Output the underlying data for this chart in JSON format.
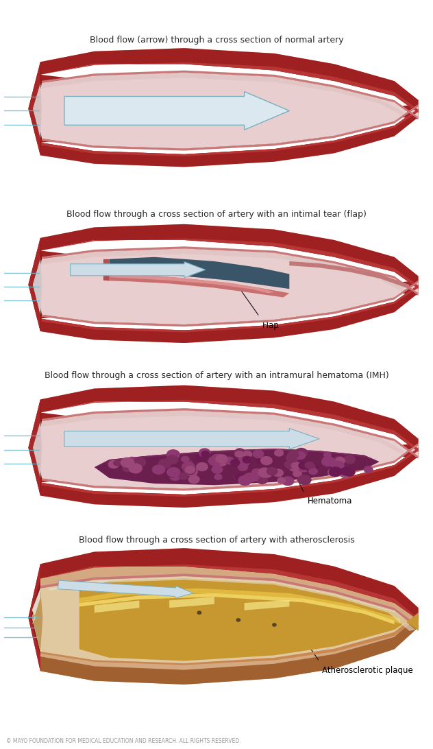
{
  "title1": "Blood flow (arrow) through a cross section of normal artery",
  "title2": "Blood flow through a cross section of artery with an intimal tear (flap)",
  "title3": "Blood flow through a cross section of artery with an intramural hematoma (IMH)",
  "title4": "Blood flow through a cross section of artery with atherosclerosis",
  "label_flap": "Flap",
  "label_hematoma": "Hematoma",
  "label_plaque": "Atherosclerotic plaque",
  "copyright": "© MAYO FOUNDATION FOR MEDICAL EDUCATION AND RESEARCH. ALL RIGHTS RESERVED.",
  "bg_color": "#ffffff",
  "title_fontsize": 9,
  "label_fontsize": 8.5,
  "copyright_fontsize": 5.5,
  "flow_lines_color": "#70b8cc"
}
